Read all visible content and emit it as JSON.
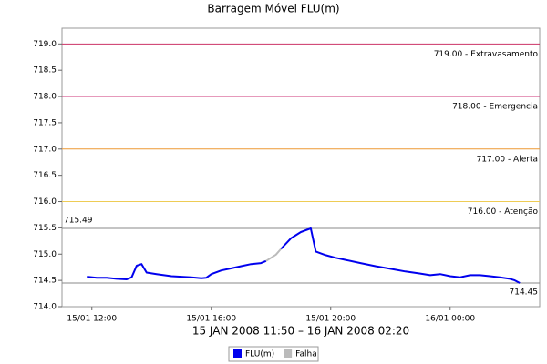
{
  "chart_data": {
    "type": "line",
    "title": "Barragem Móvel FLU(m)",
    "x_label": "15 JAN 2008 11:50 – 16 JAN 2008 02:20",
    "x": [
      "2008-01-15T11:50",
      "2008-01-15T12:10",
      "2008-01-15T12:30",
      "2008-01-15T12:50",
      "2008-01-15T13:10",
      "2008-01-15T13:20",
      "2008-01-15T13:30",
      "2008-01-15T13:40",
      "2008-01-15T13:50",
      "2008-01-15T14:10",
      "2008-01-15T14:40",
      "2008-01-15T15:00",
      "2008-01-15T15:20",
      "2008-01-15T15:40",
      "2008-01-15T15:50",
      "2008-01-15T16:00",
      "2008-01-15T16:20",
      "2008-01-15T16:40",
      "2008-01-15T17:00",
      "2008-01-15T17:20",
      "2008-01-15T17:40",
      "2008-01-15T17:50",
      "2008-01-15T18:00",
      "2008-01-15T18:10",
      "2008-01-15T18:20",
      "2008-01-15T18:40",
      "2008-01-15T19:00",
      "2008-01-15T19:20",
      "2008-01-15T19:30",
      "2008-01-15T19:50",
      "2008-01-15T20:10",
      "2008-01-15T20:30",
      "2008-01-15T21:00",
      "2008-01-15T21:30",
      "2008-01-15T22:00",
      "2008-01-15T22:30",
      "2008-01-15T23:00",
      "2008-01-15T23:20",
      "2008-01-15T23:40",
      "2008-01-16T00:00",
      "2008-01-16T00:20",
      "2008-01-16T00:40",
      "2008-01-16T01:00",
      "2008-01-16T01:20",
      "2008-01-16T01:40",
      "2008-01-16T02:00",
      "2008-01-16T02:10",
      "2008-01-16T02:20"
    ],
    "series": [
      {
        "name": "FLU(m)",
        "color": "#0000ee",
        "values": [
          714.57,
          714.55,
          714.55,
          714.53,
          714.52,
          714.56,
          714.78,
          714.81,
          714.65,
          714.62,
          714.58,
          714.57,
          714.56,
          714.54,
          714.55,
          714.62,
          714.69,
          714.73,
          714.77,
          714.81,
          714.83,
          714.87,
          null,
          null,
          715.1,
          715.3,
          715.42,
          715.49,
          715.05,
          714.98,
          714.93,
          714.89,
          714.83,
          714.77,
          714.72,
          714.67,
          714.63,
          714.6,
          714.62,
          714.58,
          714.56,
          714.6,
          714.6,
          714.58,
          714.56,
          714.53,
          714.5,
          714.45
        ]
      },
      {
        "name": "Falha",
        "color": "#bbbbbb",
        "values": [
          null,
          null,
          null,
          null,
          null,
          null,
          null,
          null,
          null,
          null,
          null,
          null,
          null,
          null,
          null,
          null,
          null,
          null,
          null,
          null,
          null,
          714.87,
          714.93,
          714.99,
          715.1,
          null,
          null,
          null,
          null,
          null,
          null,
          null,
          null,
          null,
          null,
          null,
          null,
          null,
          null,
          null,
          null,
          null,
          null,
          null,
          null,
          null,
          null,
          null
        ]
      }
    ],
    "xlim": [
      "2008-01-15T11:00",
      "2008-01-16T03:00"
    ],
    "xticks": [
      {
        "value": "2008-01-15T12:00",
        "label": "15/01 12:00"
      },
      {
        "value": "2008-01-15T16:00",
        "label": "15/01 16:00"
      },
      {
        "value": "2008-01-15T20:00",
        "label": "15/01 20:00"
      },
      {
        "value": "2008-01-16T00:00",
        "label": "16/01 00:00"
      }
    ],
    "ylim": [
      714.0,
      719.3
    ],
    "yticks": [
      {
        "value": 714,
        "label": "714.0"
      },
      714.5,
      {
        "value": 715,
        "label": "715.0"
      },
      715.5,
      {
        "value": 716,
        "label": "716.0"
      },
      716.5,
      {
        "value": 717,
        "label": "717.0"
      },
      717.5,
      {
        "value": 718,
        "label": "718.0"
      },
      718.5,
      {
        "value": 719,
        "label": "719.0"
      }
    ],
    "thresholds": [
      {
        "value": 719,
        "label": "719.00 - Extravasamento",
        "color": "#cc3366"
      },
      {
        "value": 718,
        "label": "718.00 - Emergencia",
        "color": "#cc3377"
      },
      {
        "value": 717,
        "label": "717.00 - Alerta",
        "color": "#ee9933"
      },
      {
        "value": 716,
        "label": "716.00 - Atenção",
        "color": "#eecc55"
      }
    ],
    "markers": [
      {
        "value": 715.49,
        "label": "715.49",
        "color": "#888888"
      },
      {
        "value": 714.45,
        "label": "714.45",
        "color": "#888888"
      }
    ]
  }
}
